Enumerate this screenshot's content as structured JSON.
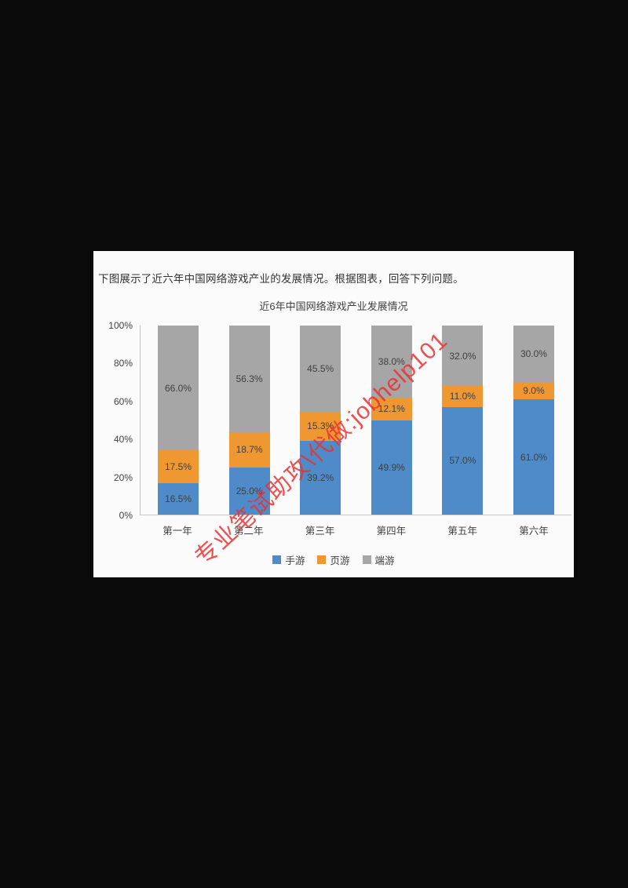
{
  "page": {
    "question_text": "下图展示了近六年中国网络游戏产业的发展情况。根据图表，回答下列问题。",
    "watermark": "专业笔试助攻\\代做:jobhelp101"
  },
  "chart_data": {
    "type": "bar",
    "stacked": true,
    "title": "近6年中国网络游戏产业发展情况",
    "categories": [
      "第一年",
      "第二年",
      "第三年",
      "第四年",
      "第五年",
      "第六年"
    ],
    "series": [
      {
        "key": "mobile-games",
        "name": "手游",
        "color": "#4e8bc8",
        "values": [
          16.5,
          25.0,
          39.2,
          49.9,
          57.0,
          61.0
        ]
      },
      {
        "key": "web-games",
        "name": "页游",
        "color": "#ef9730",
        "values": [
          17.5,
          18.7,
          15.3,
          12.1,
          11.0,
          9.0
        ]
      },
      {
        "key": "client-games",
        "name": "端游",
        "color": "#a6a6a6",
        "values": [
          66.0,
          56.3,
          45.5,
          38.0,
          32.0,
          30.0
        ]
      }
    ],
    "y_ticks": [
      "100%",
      "80%",
      "60%",
      "40%",
      "20%",
      "0%"
    ],
    "ylim": [
      0,
      100
    ],
    "grid": false,
    "legend_position": "bottom",
    "label_format": "one-decimal-percent"
  }
}
